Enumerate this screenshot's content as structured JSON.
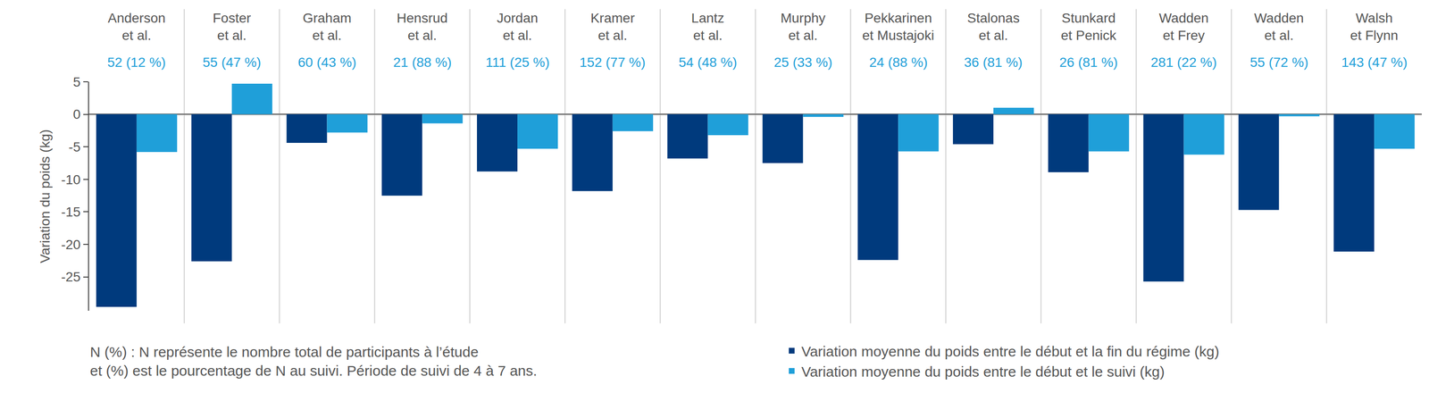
{
  "chart_data": {
    "type": "bar",
    "categories": [
      "Anderson\net al.",
      "Foster\net al.",
      "Graham\net al.",
      "Hensrud\net al.",
      "Jordan\net al.",
      "Kramer\net al.",
      "Lantz\net al.",
      "Murphy\net al.",
      "Pekkarinen\net Mustajoki",
      "Stalonas\net al.",
      "Stunkard\net Penick",
      "Wadden\net Frey",
      "Wadden\net al.",
      "Walsh\net Flynn"
    ],
    "category_notes": [
      "52 (12 %)",
      "55 (47 %)",
      "60 (43 %)",
      "21 (88 %)",
      "111 (25 %)",
      "152 (77 %)",
      "54 (48 %)",
      "25 (33 %)",
      "24 (88 %)",
      "36 (81 %)",
      "26 (81 %)",
      "281 (22 %)",
      "55 (72 %)",
      "143 (47 %)"
    ],
    "y_label": "Variation du poids (kg)",
    "ylim": [
      -30.2,
      5
    ],
    "yticks": [
      5,
      0,
      -5,
      -10,
      -15,
      -20,
      -25
    ],
    "series": [
      {
        "name": "Variation moyenne du poids entre le début et la fin du régime (kg)",
        "color": "#003a7d",
        "values": [
          -29.6,
          -22.6,
          -4.4,
          -12.5,
          -8.8,
          -11.8,
          -6.8,
          -7.5,
          -22.4,
          -4.6,
          -8.9,
          -25.7,
          -14.7,
          -21.1
        ]
      },
      {
        "name": "Variation moyenne du poids entre le début et le suivi (kg)",
        "color": "#1f9fd9",
        "values": [
          -5.8,
          4.7,
          -2.8,
          -1.4,
          -5.3,
          -2.6,
          -3.2,
          -0.4,
          -5.7,
          1.0,
          -5.7,
          -6.2,
          -0.3,
          -5.3
        ]
      }
    ],
    "legend": "bottom right",
    "note": "N (%) : N représente le nombre total de participants à l’étude\net (%) est le pourcentage de N au suivi. Période de suivi de 4 à 7 ans."
  }
}
